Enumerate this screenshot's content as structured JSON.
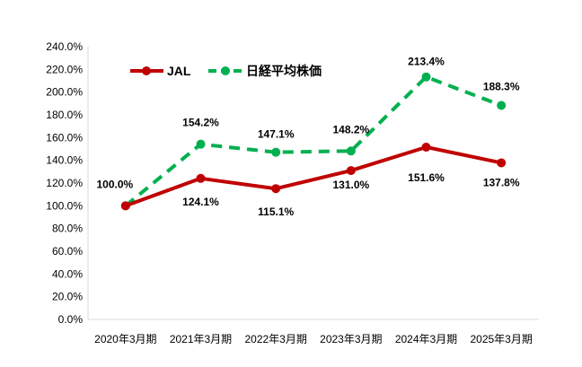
{
  "chart_data": {
    "type": "line",
    "categories": [
      "2020年3月期",
      "2021年3月期",
      "2022年3月期",
      "2023年3月期",
      "2024年3月期",
      "2025年3月期"
    ],
    "series": [
      {
        "name": "JAL",
        "values": [
          100.0,
          124.1,
          115.1,
          131.0,
          151.6,
          137.8
        ],
        "labels": [
          "100.0%",
          "124.1%",
          "115.1%",
          "131.0%",
          "151.6%",
          "137.8%"
        ],
        "color": "#c00000",
        "style": "solid"
      },
      {
        "name": "日経平均株価",
        "values": [
          100.0,
          154.2,
          147.1,
          148.2,
          213.4,
          188.3
        ],
        "labels": [
          "100.0%",
          "154.2%",
          "147.1%",
          "148.2%",
          "213.4%",
          "188.3%"
        ],
        "color": "#00b050",
        "style": "dashed"
      }
    ],
    "ylim": [
      0,
      240
    ],
    "y_ticks": [
      "0.0%",
      "20.0%",
      "40.0%",
      "60.0%",
      "80.0%",
      "100.0%",
      "120.0%",
      "140.0%",
      "160.0%",
      "180.0%",
      "200.0%",
      "220.0%",
      "240.0%"
    ],
    "title": "",
    "xlabel": "",
    "ylabel": "",
    "grid": false,
    "legend_position": "top-left"
  }
}
